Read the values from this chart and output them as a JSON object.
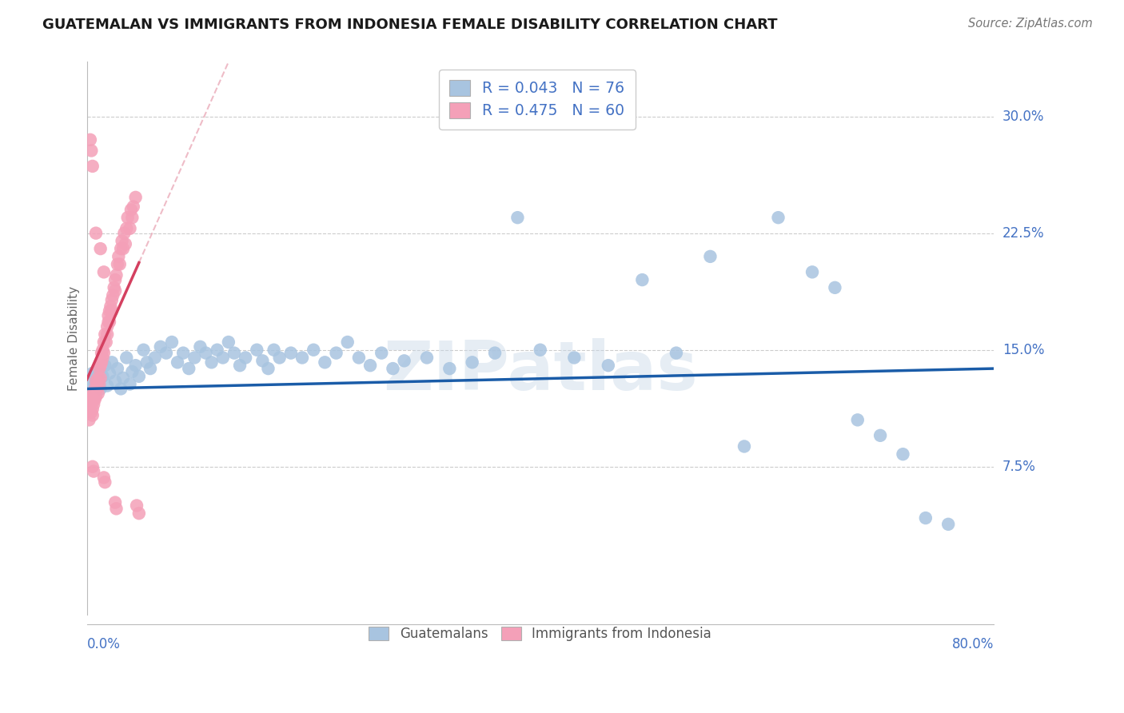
{
  "title": "GUATEMALAN VS IMMIGRANTS FROM INDONESIA FEMALE DISABILITY CORRELATION CHART",
  "source": "Source: ZipAtlas.com",
  "ylabel": "Female Disability",
  "xlim": [
    0.0,
    0.8
  ],
  "ylim": [
    -0.02,
    0.335
  ],
  "watermark": "ZIPatlas",
  "legend_R1": "R = 0.043",
  "legend_N1": "N = 76",
  "legend_R2": "R = 0.475",
  "legend_N2": "N = 60",
  "blue_color": "#a8c4e0",
  "pink_color": "#f4a0b8",
  "blue_line_color": "#1a5ca8",
  "pink_line_color": "#d44060",
  "pink_dash_color": "#e8a0b0",
  "text_blue": "#4472c4",
  "grid_color": "#cccccc",
  "ytick_vals": [
    0.075,
    0.15,
    0.225,
    0.3
  ],
  "ytick_labels": [
    "7.5%",
    "15.0%",
    "22.5%",
    "30.0%"
  ],
  "blue_x": [
    0.003,
    0.005,
    0.007,
    0.008,
    0.01,
    0.012,
    0.014,
    0.016,
    0.018,
    0.02,
    0.022,
    0.025,
    0.027,
    0.03,
    0.032,
    0.035,
    0.038,
    0.04,
    0.043,
    0.046,
    0.05,
    0.053,
    0.056,
    0.06,
    0.065,
    0.07,
    0.075,
    0.08,
    0.085,
    0.09,
    0.095,
    0.1,
    0.105,
    0.11,
    0.115,
    0.12,
    0.125,
    0.13,
    0.135,
    0.14,
    0.15,
    0.155,
    0.16,
    0.165,
    0.17,
    0.18,
    0.19,
    0.2,
    0.21,
    0.22,
    0.23,
    0.24,
    0.25,
    0.26,
    0.27,
    0.28,
    0.3,
    0.32,
    0.34,
    0.36,
    0.38,
    0.4,
    0.43,
    0.46,
    0.49,
    0.52,
    0.55,
    0.58,
    0.61,
    0.64,
    0.66,
    0.68,
    0.7,
    0.72,
    0.74,
    0.76
  ],
  "blue_y": [
    0.13,
    0.135,
    0.128,
    0.132,
    0.138,
    0.125,
    0.133,
    0.14,
    0.127,
    0.135,
    0.142,
    0.13,
    0.138,
    0.125,
    0.132,
    0.145,
    0.128,
    0.136,
    0.14,
    0.133,
    0.15,
    0.142,
    0.138,
    0.145,
    0.152,
    0.148,
    0.155,
    0.142,
    0.148,
    0.138,
    0.145,
    0.152,
    0.148,
    0.142,
    0.15,
    0.145,
    0.155,
    0.148,
    0.14,
    0.145,
    0.15,
    0.143,
    0.138,
    0.15,
    0.145,
    0.148,
    0.145,
    0.15,
    0.142,
    0.148,
    0.155,
    0.145,
    0.14,
    0.148,
    0.138,
    0.143,
    0.145,
    0.138,
    0.142,
    0.148,
    0.235,
    0.15,
    0.145,
    0.14,
    0.195,
    0.148,
    0.21,
    0.088,
    0.235,
    0.2,
    0.19,
    0.105,
    0.095,
    0.083,
    0.042,
    0.038
  ],
  "pink_x": [
    0.002,
    0.003,
    0.003,
    0.004,
    0.004,
    0.005,
    0.005,
    0.006,
    0.006,
    0.007,
    0.007,
    0.008,
    0.008,
    0.009,
    0.009,
    0.01,
    0.01,
    0.011,
    0.011,
    0.012,
    0.012,
    0.013,
    0.013,
    0.014,
    0.014,
    0.015,
    0.015,
    0.016,
    0.017,
    0.018,
    0.018,
    0.019,
    0.019,
    0.02,
    0.02,
    0.021,
    0.022,
    0.022,
    0.023,
    0.024,
    0.025,
    0.025,
    0.026,
    0.027,
    0.028,
    0.029,
    0.03,
    0.031,
    0.032,
    0.033,
    0.034,
    0.035,
    0.036,
    0.038,
    0.039,
    0.04,
    0.041,
    0.043,
    0.044,
    0.046
  ],
  "pink_y": [
    0.105,
    0.115,
    0.12,
    0.11,
    0.118,
    0.112,
    0.108,
    0.115,
    0.122,
    0.118,
    0.125,
    0.12,
    0.13,
    0.125,
    0.128,
    0.122,
    0.132,
    0.128,
    0.138,
    0.132,
    0.14,
    0.148,
    0.142,
    0.15,
    0.145,
    0.155,
    0.148,
    0.16,
    0.155,
    0.165,
    0.16,
    0.168,
    0.172,
    0.175,
    0.168,
    0.178,
    0.182,
    0.175,
    0.185,
    0.19,
    0.195,
    0.188,
    0.198,
    0.205,
    0.21,
    0.205,
    0.215,
    0.22,
    0.215,
    0.225,
    0.218,
    0.228,
    0.235,
    0.228,
    0.24,
    0.235,
    0.242,
    0.248,
    0.05,
    0.045
  ],
  "pink_outliers_x": [
    0.003,
    0.004,
    0.005,
    0.008,
    0.012,
    0.015
  ],
  "pink_outliers_y": [
    0.285,
    0.278,
    0.268,
    0.225,
    0.215,
    0.2
  ],
  "pink_low_x": [
    0.005,
    0.006,
    0.015,
    0.016,
    0.025,
    0.026
  ],
  "pink_low_y": [
    0.075,
    0.072,
    0.068,
    0.065,
    0.052,
    0.048
  ]
}
